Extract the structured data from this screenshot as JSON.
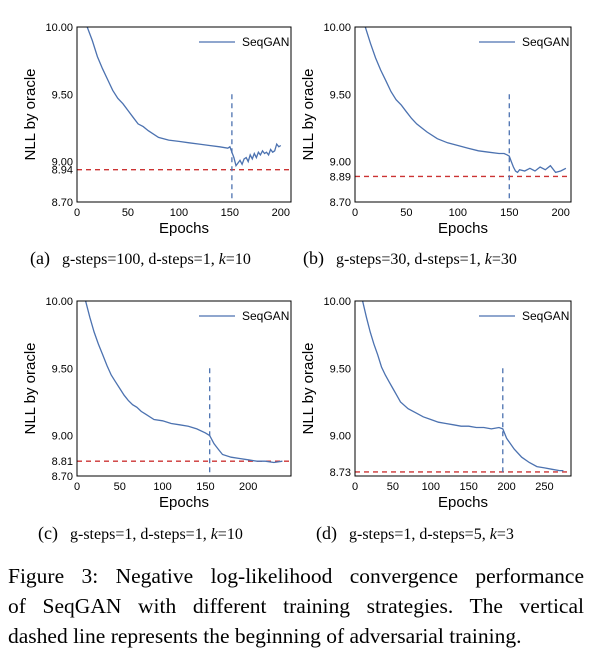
{
  "colors": {
    "series": "#4c72b0",
    "baseline": "#cc3333",
    "adversarial_marker": "#4c72b0",
    "axis": "#000000"
  },
  "chart_data": [
    {
      "type": "line",
      "panel_label": "(a)",
      "caption": "g-steps=100, d-steps=1, k=10",
      "caption_parts": {
        "g": "g-steps=100, d-steps=1, ",
        "k": "k",
        "kval": "=10"
      },
      "xlabel": "Epochs",
      "ylabel": "NLL by oracle",
      "xlim": [
        0,
        210
      ],
      "ylim": [
        8.7,
        10.0
      ],
      "xticks": [
        "0",
        "50",
        "100",
        "150",
        "200"
      ],
      "yticks": [
        "8.70",
        "8.94",
        "9.00",
        "9.50",
        "10.00"
      ],
      "ytick_values": [
        8.7,
        8.94,
        9.0,
        9.5,
        10.0
      ],
      "xtick_values": [
        0,
        50,
        100,
        150,
        200
      ],
      "legend": "SeqGAN",
      "legend_position": "top-right",
      "baseline": 8.94,
      "adversarial_start": 152,
      "series": [
        {
          "name": "SeqGAN",
          "x": [
            10,
            15,
            20,
            25,
            30,
            35,
            40,
            45,
            50,
            55,
            60,
            65,
            70,
            80,
            90,
            100,
            110,
            120,
            130,
            140,
            148,
            150,
            152,
            154,
            156,
            158,
            160,
            162,
            164,
            166,
            168,
            170,
            172,
            174,
            176,
            178,
            180,
            182,
            184,
            186,
            188,
            190,
            192,
            194,
            196,
            198,
            200
          ],
          "y": [
            10.0,
            9.9,
            9.78,
            9.69,
            9.61,
            9.53,
            9.47,
            9.43,
            9.38,
            9.33,
            9.28,
            9.26,
            9.23,
            9.18,
            9.16,
            9.15,
            9.14,
            9.13,
            9.12,
            9.11,
            9.1,
            9.11,
            9.07,
            9.03,
            8.97,
            8.99,
            9.01,
            8.98,
            9.02,
            9.03,
            9.0,
            9.05,
            9.02,
            9.06,
            9.03,
            9.07,
            9.05,
            9.08,
            9.06,
            9.07,
            9.05,
            9.09,
            9.07,
            9.08,
            9.13,
            9.11,
            9.12
          ]
        }
      ]
    },
    {
      "type": "line",
      "panel_label": "(b)",
      "caption": "g-steps=30, d-steps=1, k=30",
      "caption_parts": {
        "g": "g-steps=30, d-steps=1, ",
        "k": "k",
        "kval": "=30"
      },
      "xlabel": "Epochs",
      "ylabel": "NLL by oracle",
      "xlim": [
        0,
        210
      ],
      "ylim": [
        8.7,
        10.0
      ],
      "xticks": [
        "0",
        "50",
        "100",
        "150",
        "200"
      ],
      "yticks": [
        "8.70",
        "8.89",
        "9.00",
        "9.50",
        "10.00"
      ],
      "ytick_values": [
        8.7,
        8.89,
        9.0,
        9.5,
        10.0
      ],
      "xtick_values": [
        0,
        50,
        100,
        150,
        200
      ],
      "legend": "SeqGAN",
      "legend_position": "top-right",
      "baseline": 8.89,
      "adversarial_start": 150,
      "series": [
        {
          "name": "SeqGAN",
          "x": [
            10,
            15,
            20,
            25,
            30,
            35,
            40,
            45,
            50,
            55,
            60,
            65,
            70,
            80,
            90,
            100,
            110,
            120,
            130,
            140,
            145,
            148,
            150,
            152,
            154,
            156,
            158,
            160,
            165,
            170,
            175,
            180,
            185,
            190,
            195,
            200,
            205
          ],
          "y": [
            10.0,
            9.88,
            9.77,
            9.68,
            9.6,
            9.52,
            9.46,
            9.42,
            9.37,
            9.32,
            9.28,
            9.25,
            9.22,
            9.17,
            9.14,
            9.12,
            9.1,
            9.08,
            9.07,
            9.06,
            9.06,
            9.05,
            9.04,
            9.0,
            8.96,
            8.93,
            8.92,
            8.94,
            8.93,
            8.95,
            8.93,
            8.96,
            8.94,
            8.97,
            8.92,
            8.93,
            8.95
          ]
        }
      ]
    },
    {
      "type": "line",
      "panel_label": "(c)",
      "caption": "g-steps=1, d-steps=1, k=10",
      "caption_parts": {
        "g": "g-steps=1, d-steps=1, ",
        "k": "k",
        "kval": "=10"
      },
      "xlabel": "Epochs",
      "ylabel": "NLL by oracle",
      "xlim": [
        0,
        250
      ],
      "ylim": [
        8.7,
        10.0
      ],
      "xticks": [
        "0",
        "50",
        "100",
        "150",
        "200"
      ],
      "yticks": [
        "8.70",
        "8.81",
        "9.00",
        "9.50",
        "10.00"
      ],
      "ytick_values": [
        8.7,
        8.81,
        9.0,
        9.5,
        10.0
      ],
      "xtick_values": [
        0,
        50,
        100,
        150,
        200
      ],
      "legend": "SeqGAN",
      "legend_position": "top-right",
      "baseline": 8.81,
      "adversarial_start": 155,
      "series": [
        {
          "name": "SeqGAN",
          "x": [
            10,
            15,
            20,
            25,
            30,
            35,
            40,
            45,
            50,
            55,
            60,
            65,
            70,
            75,
            80,
            90,
            100,
            110,
            120,
            130,
            140,
            150,
            155,
            160,
            165,
            170,
            180,
            190,
            200,
            210,
            220,
            230,
            240
          ],
          "y": [
            10.0,
            9.88,
            9.77,
            9.68,
            9.6,
            9.52,
            9.45,
            9.4,
            9.35,
            9.3,
            9.26,
            9.23,
            9.21,
            9.18,
            9.16,
            9.12,
            9.11,
            9.09,
            9.08,
            9.07,
            9.05,
            9.02,
            9.0,
            8.94,
            8.9,
            8.86,
            8.84,
            8.83,
            8.82,
            8.81,
            8.81,
            8.8,
            8.81
          ]
        }
      ]
    },
    {
      "type": "line",
      "panel_label": "(d)",
      "caption": "g-steps=1, d-steps=5, k=3",
      "caption_parts": {
        "g": "g-steps=1, d-steps=5, ",
        "k": "k",
        "kval": "=3"
      },
      "xlabel": "Epochs",
      "ylabel": "NLL by oracle",
      "xlim": [
        0,
        285
      ],
      "ylim": [
        8.7,
        10.0
      ],
      "xticks": [
        "0",
        "50",
        "100",
        "150",
        "200",
        "250"
      ],
      "yticks": [
        "8.73",
        "9.00",
        "9.50",
        "10.00"
      ],
      "ytick_values": [
        8.73,
        9.0,
        9.5,
        10.0
      ],
      "xtick_values": [
        0,
        50,
        100,
        150,
        200,
        250
      ],
      "legend": "SeqGAN",
      "legend_position": "top-right",
      "baseline": 8.73,
      "adversarial_start": 195,
      "series": [
        {
          "name": "SeqGAN",
          "x": [
            10,
            15,
            20,
            25,
            30,
            35,
            40,
            45,
            50,
            55,
            60,
            70,
            80,
            90,
            100,
            110,
            120,
            130,
            140,
            150,
            160,
            170,
            180,
            190,
            195,
            200,
            210,
            220,
            230,
            240,
            250,
            260,
            270,
            275
          ],
          "y": [
            10.0,
            9.88,
            9.77,
            9.68,
            9.6,
            9.51,
            9.45,
            9.4,
            9.35,
            9.3,
            9.25,
            9.2,
            9.17,
            9.14,
            9.12,
            9.1,
            9.09,
            9.08,
            9.07,
            9.07,
            9.06,
            9.06,
            9.05,
            9.06,
            9.05,
            8.98,
            8.9,
            8.84,
            8.8,
            8.77,
            8.76,
            8.75,
            8.74,
            8.74
          ]
        }
      ]
    }
  ],
  "figure_caption": {
    "lines": [
      "Figure 3: Negative log-likelihood convergence performance",
      "of SeqGAN with different training strategies. The vertical",
      "dashed line represents the beginning of adversarial training."
    ]
  }
}
